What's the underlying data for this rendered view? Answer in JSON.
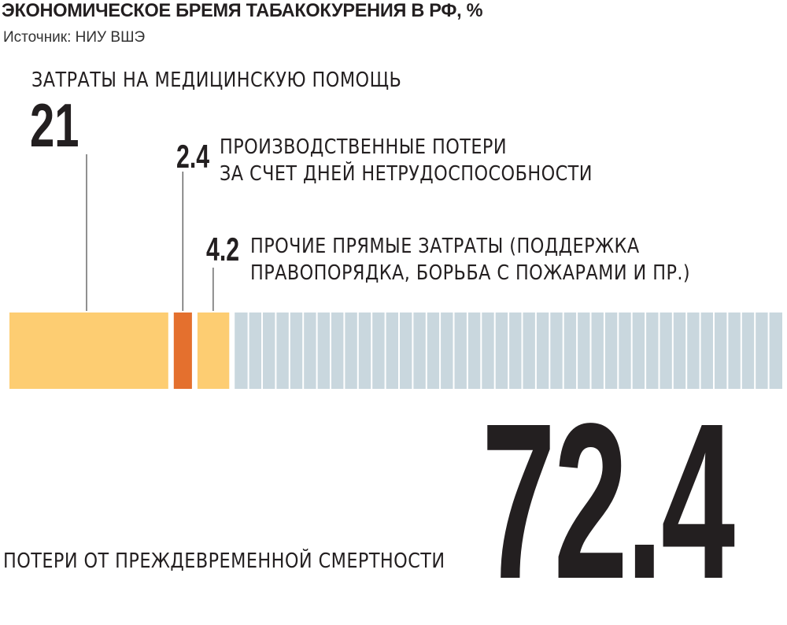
{
  "header": {
    "title": "ЭКОНОМИЧЕСКОЕ БРЕМЯ ТАБАКОКУРЕНИЯ В РФ, %",
    "source": "Источник: НИУ ВШЭ"
  },
  "colors": {
    "medical": "#fdcd72",
    "production": "#e4702e",
    "other_direct": "#fdcd72",
    "mortality": "#c9d7de",
    "text": "#231f20"
  },
  "chart_data": {
    "type": "bar",
    "orientation": "horizontal-stacked",
    "title": "ЭКОНОМИЧЕСКОЕ БРЕМЯ ТАБАКОКУРЕНИЯ В РФ, %",
    "source": "Источник: НИУ ВШЭ",
    "unit": "%",
    "segments": [
      {
        "value": 21,
        "label": "21",
        "name_lines": [
          "ЗАТРАТЫ НА МЕДИЦИНСКУЮ ПОМОЩЬ"
        ]
      },
      {
        "value": 2.4,
        "label": "2.4",
        "name_lines": [
          "ПРОИЗВОДСТВЕННЫЕ ПОТЕРИ",
          "ЗА СЧЕТ ДНЕЙ НЕТРУДОСПОСОБНОСТИ"
        ]
      },
      {
        "value": 4.2,
        "label": "4.2",
        "name_lines": [
          "ПРОЧИЕ ПРЯМЫЕ ЗАТРАТЫ (ПОДДЕРЖКА",
          "ПРАВОПОРЯДКА, БОРЬБА С ПОЖАРАМИ И ПР.)"
        ]
      },
      {
        "value": 72.4,
        "label": "72.4",
        "name_lines": [
          "ПОТЕРИ ОТ ПРЕЖДЕВРЕМЕННОЙ СМЕРТНОСТИ"
        ]
      }
    ]
  }
}
